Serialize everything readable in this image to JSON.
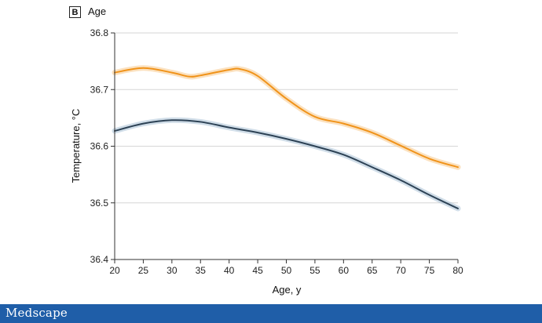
{
  "panel": {
    "letter": "B",
    "title": "Age"
  },
  "footer": {
    "brand": "Medscape"
  },
  "chart_data": {
    "type": "line",
    "xlabel": "Age, y",
    "ylabel": "Temperature, °C",
    "xlim": [
      20,
      80
    ],
    "ylim": [
      36.4,
      36.8
    ],
    "xticks": [
      20,
      25,
      30,
      35,
      40,
      45,
      50,
      55,
      60,
      65,
      70,
      75,
      80
    ],
    "yticks": [
      36.4,
      36.5,
      36.6,
      36.7,
      36.8
    ],
    "grid": true,
    "legend": "none",
    "series": [
      {
        "color": "#f0931a",
        "band_color": "#f7c98b",
        "x": [
          20,
          25,
          30,
          33,
          35,
          40,
          42,
          45,
          50,
          55,
          60,
          65,
          70,
          75,
          80
        ],
        "y": [
          36.73,
          36.738,
          36.73,
          36.723,
          36.725,
          36.735,
          36.736,
          36.724,
          36.684,
          36.652,
          36.64,
          36.624,
          36.601,
          36.578,
          36.563
        ]
      },
      {
        "color": "#2d4255",
        "band_color": "#a9c1d5",
        "x": [
          20,
          25,
          30,
          35,
          40,
          45,
          50,
          55,
          60,
          65,
          70,
          75,
          80
        ],
        "y": [
          36.627,
          36.64,
          36.646,
          36.643,
          36.633,
          36.624,
          36.613,
          36.6,
          36.585,
          36.563,
          36.54,
          36.514,
          36.49
        ]
      }
    ]
  }
}
